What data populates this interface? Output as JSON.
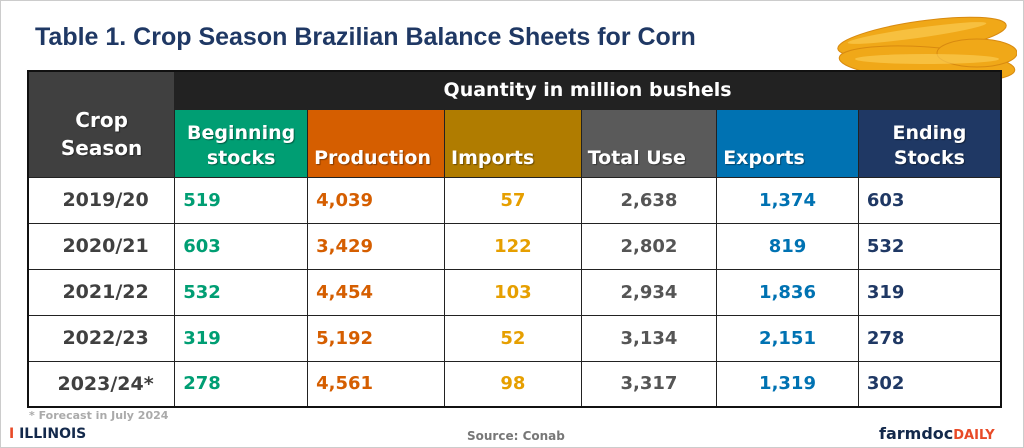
{
  "title": "Table 1. Crop Season Brazilian Balance Sheets for Corn",
  "super_header": "Quantity in million bushels",
  "season_header": [
    "Crop",
    "Season"
  ],
  "columns": [
    {
      "l1": "Beginning",
      "l2": "stocks",
      "bg": "#009e73",
      "fg": "#009e73"
    },
    {
      "l1": "",
      "l2": "Production",
      "bg": "#d55e00",
      "fg": "#d55e00"
    },
    {
      "l1": "",
      "l2": "Imports",
      "bg": "#b07c00",
      "fg": "#e69f00"
    },
    {
      "l1": "",
      "l2": "Total Use",
      "bg": "#5a5a5a",
      "fg": "#555555"
    },
    {
      "l1": "",
      "l2": "Exports",
      "bg": "#0072b2",
      "fg": "#0072b2"
    },
    {
      "l1": "Ending",
      "l2": "Stocks",
      "bg": "#1f3864",
      "fg": "#1f3864"
    }
  ],
  "rows": [
    {
      "season": "2019/20",
      "values": [
        "519",
        "4,039",
        "57",
        "2,638",
        "1,374",
        "603"
      ]
    },
    {
      "season": "2020/21",
      "values": [
        "603",
        "3,429",
        "122",
        "2,802",
        "819",
        "532"
      ]
    },
    {
      "season": "2021/22",
      "values": [
        "532",
        "4,454",
        "103",
        "2,934",
        "1,836",
        "319"
      ]
    },
    {
      "season": "2022/23",
      "values": [
        "319",
        "5,192",
        "52",
        "3,134",
        "2,151",
        "278"
      ]
    },
    {
      "season": "2023/24*",
      "values": [
        "278",
        "4,561",
        "98",
        "3,317",
        "1,319",
        "302"
      ]
    }
  ],
  "footnote": "* Forecast in July 2024",
  "source": "Source: Conab",
  "logo_left": "ILLINOIS",
  "logo_right": {
    "a": "farmdoc",
    "b": "DAILY"
  }
}
